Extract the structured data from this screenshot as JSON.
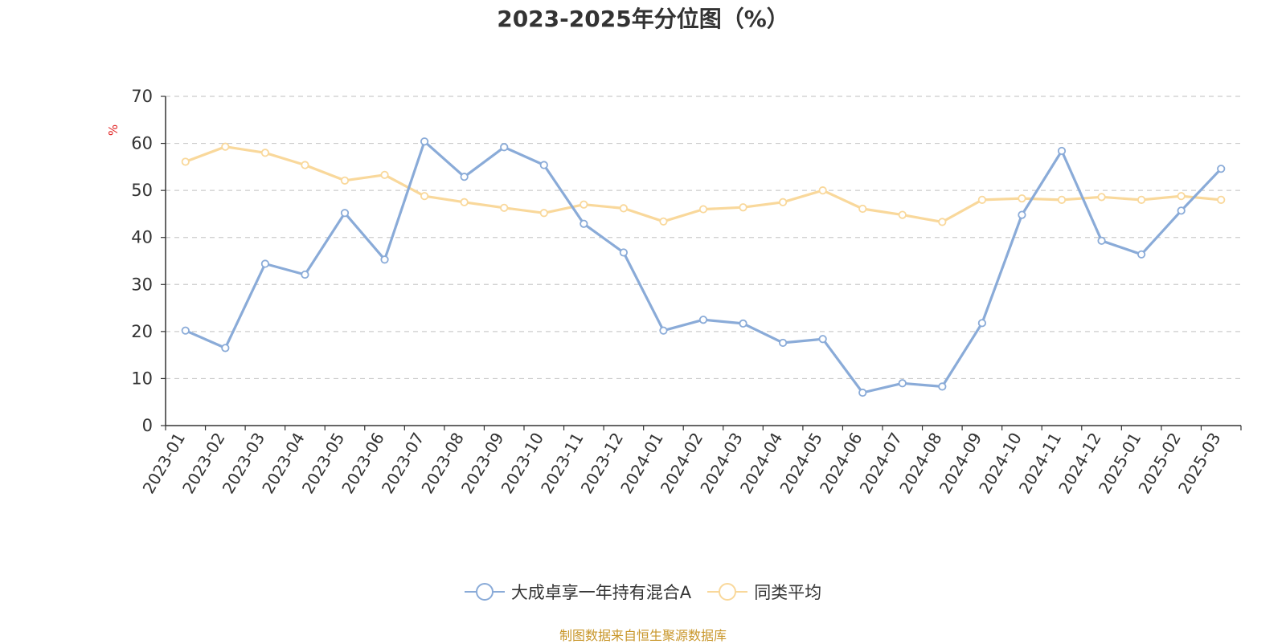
{
  "chart_data": {
    "type": "line",
    "title": "2023-2025年分位图（%）",
    "ylabel": "%",
    "xlabel": "",
    "ylim": [
      0,
      70
    ],
    "yticks": [
      0,
      10,
      20,
      30,
      40,
      50,
      60,
      70
    ],
    "grid": true,
    "legend_position": "bottom-center",
    "categories": [
      "2023-01",
      "2023-02",
      "2023-03",
      "2023-04",
      "2023-05",
      "2023-06",
      "2023-07",
      "2023-08",
      "2023-09",
      "2023-10",
      "2023-11",
      "2023-12",
      "2024-01",
      "2024-02",
      "2024-03",
      "2024-04",
      "2024-05",
      "2024-06",
      "2024-07",
      "2024-08",
      "2024-09",
      "2024-10",
      "2024-11",
      "2024-12",
      "2025-01",
      "2025-02",
      "2025-03"
    ],
    "series": [
      {
        "name": "大成卓享一年持有混合A",
        "color": "#8aabd8",
        "values": [
          20.2,
          16.5,
          34.4,
          32.1,
          45.2,
          35.3,
          60.4,
          52.9,
          59.2,
          55.4,
          42.9,
          36.8,
          20.2,
          22.5,
          21.7,
          17.6,
          18.4,
          7.0,
          9.0,
          8.3,
          21.8,
          44.8,
          58.4,
          39.3,
          36.4,
          45.7,
          54.6
        ]
      },
      {
        "name": "同类平均",
        "color": "#f9d89b",
        "values": [
          56.1,
          59.3,
          58.0,
          55.4,
          52.1,
          53.3,
          48.8,
          47.5,
          46.3,
          45.2,
          47.0,
          46.2,
          43.4,
          46.0,
          46.4,
          47.5,
          50.0,
          46.1,
          44.8,
          43.3,
          48.0,
          48.3,
          48.0,
          48.6,
          48.0,
          48.8,
          48.0
        ]
      }
    ]
  },
  "footer": {
    "source": "制图数据来自恒生聚源数据库"
  }
}
